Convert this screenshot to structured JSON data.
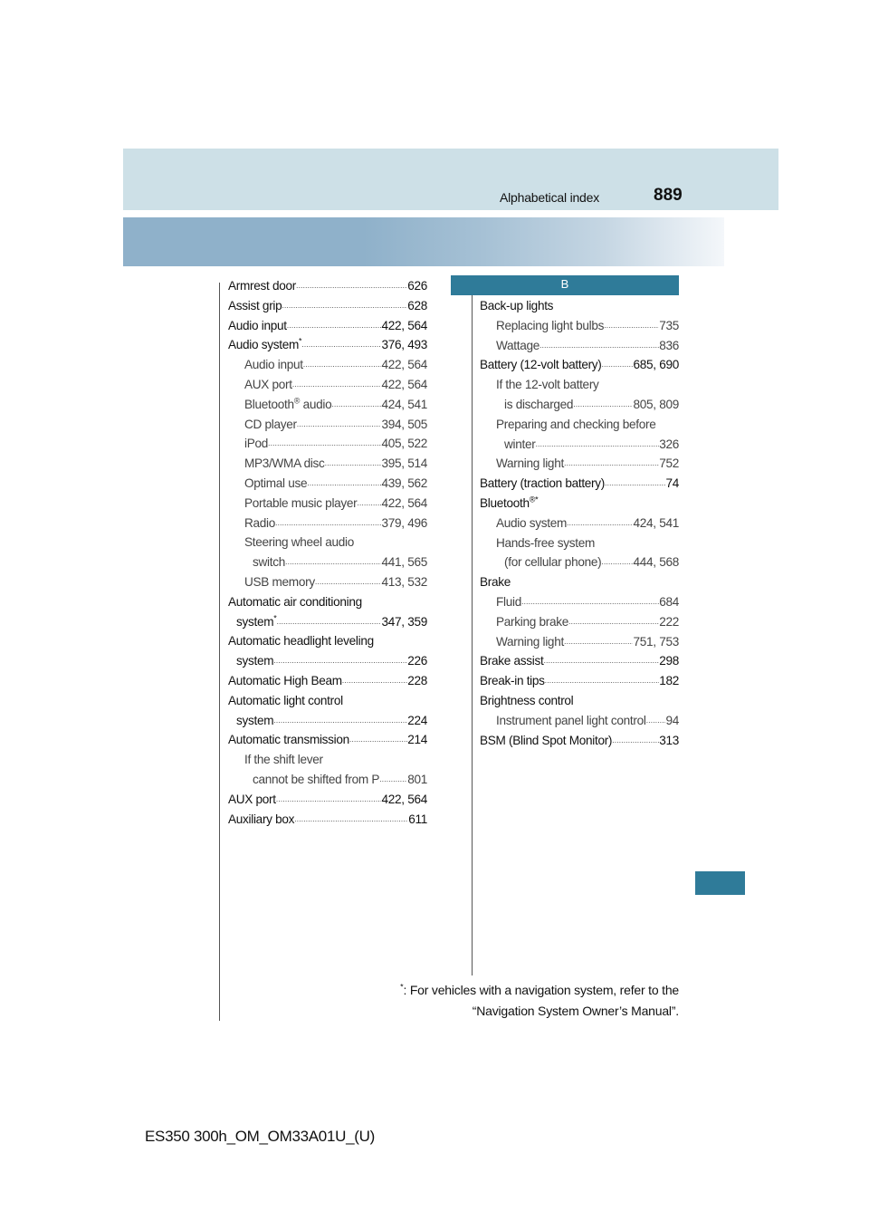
{
  "header": {
    "title": "Alphabetical index",
    "page_number": "889"
  },
  "section_letter": "B",
  "left_column": [
    {
      "text": "Armrest door",
      "page": "626",
      "level": 0
    },
    {
      "text": "Assist grip",
      "page": "628",
      "level": 0
    },
    {
      "text": "Audio input",
      "page": "422, 564",
      "level": 0
    },
    {
      "text": "Audio system",
      "sup": "*",
      "page": "376, 493",
      "level": 0
    },
    {
      "text": "Audio input",
      "page": "422, 564",
      "level": 1
    },
    {
      "text": "AUX port",
      "page": "422, 564",
      "level": 1
    },
    {
      "text": "Bluetooth",
      "sup": "®",
      "after": " audio",
      "page": "424, 541",
      "level": 1
    },
    {
      "text": "CD player",
      "page": "394, 505",
      "level": 1
    },
    {
      "text": "iPod",
      "page": "405, 522",
      "level": 1
    },
    {
      "text": "MP3/WMA disc",
      "page": "395, 514",
      "level": 1
    },
    {
      "text": "Optimal use",
      "page": "439, 562",
      "level": 1
    },
    {
      "text": "Portable music player",
      "page": "422, 564",
      "level": 1
    },
    {
      "text": "Radio",
      "page": "379, 496",
      "level": 1
    },
    {
      "text": "Steering wheel audio",
      "level": 1
    },
    {
      "text": "switch",
      "page": "441, 565",
      "level": 1,
      "cont": true
    },
    {
      "text": "USB memory",
      "page": "413, 532",
      "level": 1
    },
    {
      "text": "Automatic air conditioning",
      "level": 0
    },
    {
      "text": "system",
      "sup": "*",
      "page": "347, 359",
      "level": 0,
      "cont": true
    },
    {
      "text": "Automatic headlight leveling",
      "level": 0
    },
    {
      "text": "system",
      "page": "226",
      "level": 0,
      "cont": true
    },
    {
      "text": "Automatic High Beam",
      "page": "228",
      "level": 0
    },
    {
      "text": "Automatic light control",
      "level": 0
    },
    {
      "text": "system",
      "page": "224",
      "level": 0,
      "cont": true
    },
    {
      "text": "Automatic transmission",
      "page": "214",
      "level": 0
    },
    {
      "text": "If the shift lever",
      "level": 1
    },
    {
      "text": "cannot be shifted from P",
      "page": "801",
      "level": 1,
      "cont": true
    },
    {
      "text": "AUX port",
      "page": "422, 564",
      "level": 0
    },
    {
      "text": "Auxiliary box",
      "page": "611",
      "level": 0
    }
  ],
  "right_column": [
    {
      "text": "Back-up lights",
      "level": 0
    },
    {
      "text": "Replacing light bulbs",
      "page": "735",
      "level": 1
    },
    {
      "text": "Wattage",
      "page": "836",
      "level": 1
    },
    {
      "text": "Battery (12-volt battery)",
      "page": "685, 690",
      "level": 0
    },
    {
      "text": "If the 12-volt battery",
      "level": 1
    },
    {
      "text": "is discharged",
      "page": "805, 809",
      "level": 1,
      "cont": true
    },
    {
      "text": "Preparing and checking before",
      "level": 1
    },
    {
      "text": "winter",
      "page": "326",
      "level": 1,
      "cont": true
    },
    {
      "text": "Warning light",
      "page": "752",
      "level": 1
    },
    {
      "text": "Battery (traction battery)",
      "page": "74",
      "level": 0
    },
    {
      "text": "Bluetooth",
      "sup": "®*",
      "level": 0
    },
    {
      "text": "Audio system",
      "page": "424, 541",
      "level": 1
    },
    {
      "text": "Hands-free system",
      "level": 1
    },
    {
      "text": "(for cellular phone)",
      "page": "444, 568",
      "level": 1,
      "cont": true
    },
    {
      "text": "Brake",
      "level": 0
    },
    {
      "text": "Fluid",
      "page": "684",
      "level": 1
    },
    {
      "text": "Parking brake",
      "page": "222",
      "level": 1
    },
    {
      "text": "Warning light",
      "page": "751, 753",
      "level": 1
    },
    {
      "text": "Brake assist",
      "page": "298",
      "level": 0
    },
    {
      "text": "Break-in tips",
      "page": "182",
      "level": 0
    },
    {
      "text": "Brightness control",
      "level": 0
    },
    {
      "text": "Instrument panel light control",
      "page": "94",
      "level": 1
    },
    {
      "text": "BSM (Blind Spot Monitor)",
      "page": "313",
      "level": 0
    }
  ],
  "footnote": {
    "mark": "*",
    "line1": ": For vehicles with a navigation system, refer to the",
    "line2": "“Navigation System Owner’s Manual”."
  },
  "footer": "ES350 300h_OM_OM33A01U_(U)",
  "colors": {
    "header_light": "#cde0e7",
    "header_band": "#8fb1ca",
    "accent": "#2f7b99"
  }
}
